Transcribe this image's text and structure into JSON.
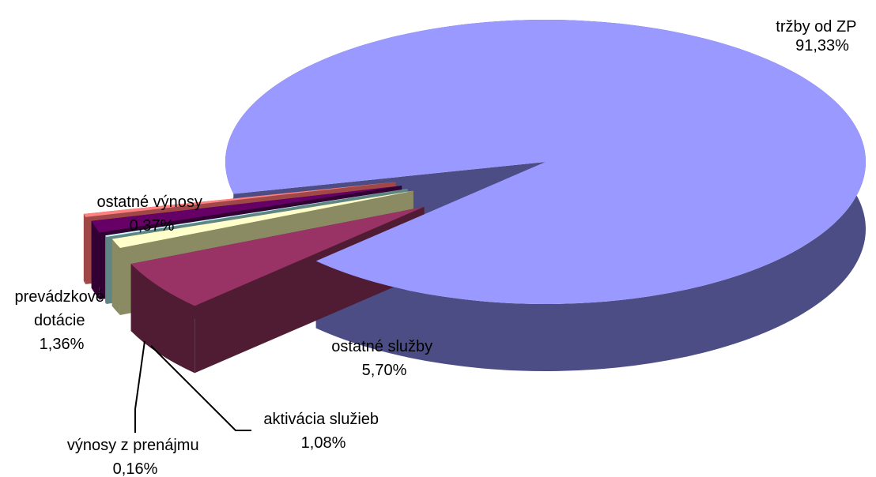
{
  "chart_data": {
    "type": "pie",
    "style": "3d-exploded",
    "slices": [
      {
        "name": "tržby od ZP",
        "value": 91.33,
        "pct_label": "91,33%",
        "color": "#9999ff",
        "side_color": "#4d4d85"
      },
      {
        "name": "ostatné služby",
        "value": 5.7,
        "pct_label": "5,70%",
        "color": "#993366",
        "side_color": "#4f1c33"
      },
      {
        "name": "aktivácia služieb",
        "value": 1.08,
        "pct_label": "1,08%",
        "color": "#ffffcc",
        "side_color": "#8a8a63"
      },
      {
        "name": "výnosy z prenájmu",
        "value": 0.16,
        "pct_label": "0,16%",
        "color": "#ccffff",
        "side_color": "#5f8585"
      },
      {
        "name": "prevádzkové dotácie",
        "value": 1.36,
        "pct_label": "1,36%",
        "color": "#660066",
        "side_color": "#330033"
      },
      {
        "name": "ostatné výnosy",
        "value": 0.37,
        "pct_label": "0,37%",
        "color": "#ff8080",
        "side_color": "#a04848"
      }
    ],
    "labels": [
      {
        "lines": [
          "tržby od ZP",
          "91,33%"
        ]
      },
      {
        "lines": [
          "ostatné služby",
          "5,70%"
        ]
      },
      {
        "lines": [
          "aktivácia služieb",
          "1,08%"
        ]
      },
      {
        "lines": [
          "výnosy z prenájmu",
          "0,16%"
        ]
      },
      {
        "lines": [
          "prevádzkové",
          "dotácie",
          "1,36%"
        ]
      },
      {
        "lines": [
          "ostatné výnosy",
          "0,37%"
        ]
      }
    ]
  }
}
